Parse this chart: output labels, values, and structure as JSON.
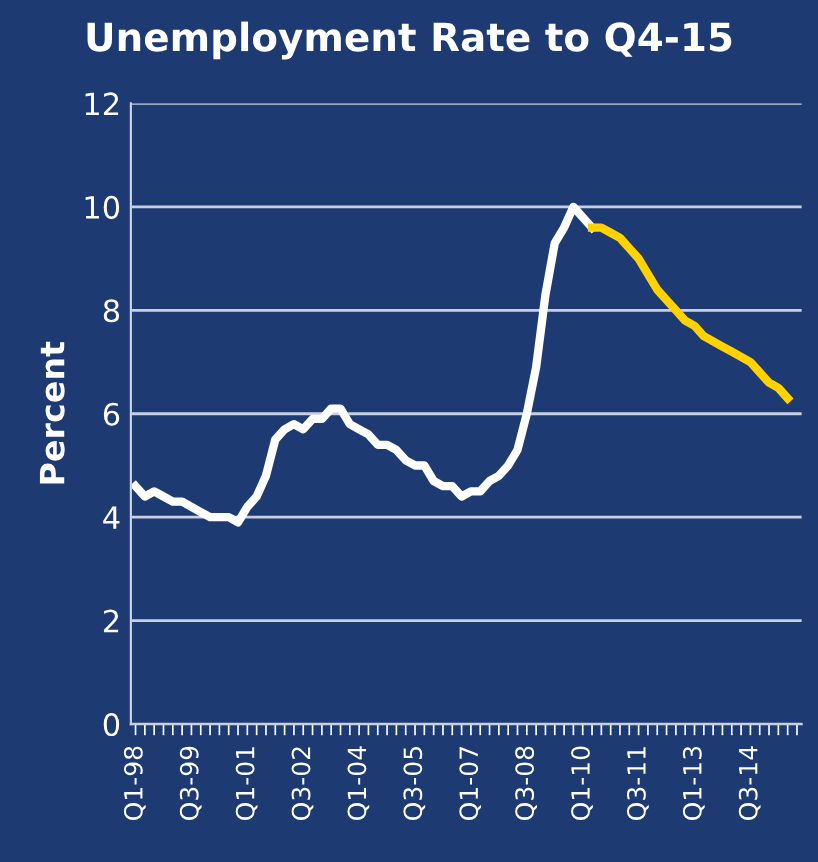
{
  "chart_data": {
    "type": "line",
    "title": "Unemployment Rate to Q4-15",
    "ylabel": "Percent",
    "categories": [
      "Q1-98",
      null,
      null,
      null,
      null,
      null,
      "Q3-99",
      null,
      null,
      null,
      null,
      null,
      "Q1-01",
      null,
      null,
      null,
      null,
      null,
      "Q3-02",
      null,
      null,
      null,
      null,
      null,
      "Q1-04",
      null,
      null,
      null,
      null,
      null,
      "Q3-05",
      null,
      null,
      null,
      null,
      null,
      "Q1-07",
      null,
      null,
      null,
      null,
      null,
      "Q3-08",
      null,
      null,
      null,
      null,
      null,
      "Q1-10",
      null,
      null,
      null,
      null,
      null,
      "Q3-11",
      null,
      null,
      null,
      null,
      null,
      "Q1-13",
      null,
      null,
      null,
      null,
      null,
      "Q3-14",
      null,
      null,
      null,
      null,
      null
    ],
    "series": [
      {
        "color": "#ffffff",
        "values": [
          4.6,
          4.4,
          4.5,
          4.4,
          4.3,
          4.3,
          4.2,
          4.1,
          4.0,
          4.0,
          4.0,
          3.9,
          4.2,
          4.4,
          4.8,
          5.5,
          5.7,
          5.8,
          5.7,
          5.9,
          5.9,
          6.1,
          6.1,
          5.8,
          5.7,
          5.6,
          5.4,
          5.4,
          5.3,
          5.1,
          5.0,
          5.0,
          4.7,
          4.6,
          4.6,
          4.4,
          4.5,
          4.5,
          4.7,
          4.8,
          5.0,
          5.3,
          6.0,
          6.9,
          8.3,
          9.3,
          9.6,
          10.0,
          9.8,
          9.6,
          null,
          null,
          null,
          null,
          null,
          null,
          null,
          null,
          null,
          null,
          null,
          null,
          null,
          null,
          null,
          null,
          null,
          null,
          null,
          null,
          null,
          null
        ]
      },
      {
        "color": "#ffd200",
        "values": [
          null,
          null,
          null,
          null,
          null,
          null,
          null,
          null,
          null,
          null,
          null,
          null,
          null,
          null,
          null,
          null,
          null,
          null,
          null,
          null,
          null,
          null,
          null,
          null,
          null,
          null,
          null,
          null,
          null,
          null,
          null,
          null,
          null,
          null,
          null,
          null,
          null,
          null,
          null,
          null,
          null,
          null,
          null,
          null,
          null,
          null,
          null,
          null,
          null,
          9.6,
          9.6,
          9.5,
          9.4,
          9.2,
          9.0,
          8.7,
          8.4,
          8.2,
          8.0,
          7.8,
          7.7,
          7.5,
          7.4,
          7.3,
          7.2,
          7.1,
          7.0,
          6.8,
          6.6,
          6.5,
          6.3,
          null
        ]
      }
    ],
    "ylim": [
      0,
      12
    ],
    "yticks": [
      0,
      2,
      4,
      6,
      8,
      10,
      12
    ],
    "grid": "y"
  }
}
